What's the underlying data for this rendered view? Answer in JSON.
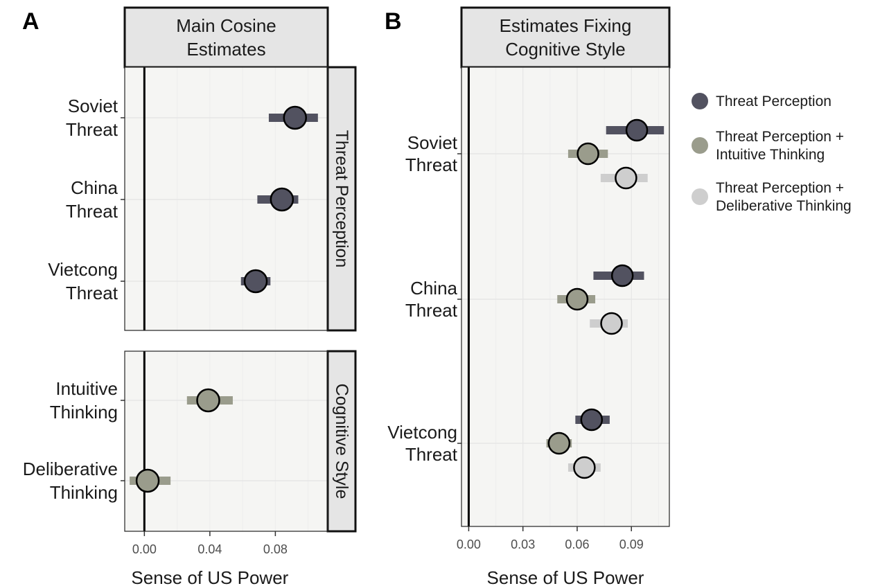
{
  "figure": {
    "panel_letters": [
      "A",
      "B"
    ]
  },
  "chart_data": [
    {
      "type": "scatter",
      "panel_letter": "A",
      "title": "Main Cosine\nEstimates",
      "xlabel": "Sense of US Power",
      "xlim": [
        -0.012,
        0.112
      ],
      "xticks": [
        0,
        0.04,
        0.08
      ],
      "xtick_labels": [
        "0.00",
        "0.04",
        "0.08"
      ],
      "zero_line": 0,
      "facets": [
        {
          "strip_label": "Threat Perception",
          "rows": [
            {
              "label": "Soviet\nThreat",
              "estimate": 0.092,
              "lo": 0.076,
              "hi": 0.106,
              "color": "#525260"
            },
            {
              "label": "China\nThreat",
              "estimate": 0.084,
              "lo": 0.069,
              "hi": 0.094,
              "color": "#525260"
            },
            {
              "label": "Vietcong\nThreat",
              "estimate": 0.068,
              "lo": 0.059,
              "hi": 0.077,
              "color": "#525260"
            }
          ]
        },
        {
          "strip_label": "Cognitive Style",
          "rows": [
            {
              "label": "Intuitive\nThinking",
              "estimate": 0.039,
              "lo": 0.026,
              "hi": 0.054,
              "color": "#9a9c8c"
            },
            {
              "label": "Deliberative\nThinking",
              "estimate": 0.002,
              "lo": -0.009,
              "hi": 0.016,
              "color": "#9a9c8c"
            }
          ]
        }
      ]
    },
    {
      "type": "scatter",
      "panel_letter": "B",
      "title": "Estimates Fixing\nCognitive Style",
      "xlabel": "Sense of US Power",
      "xlim": [
        -0.004,
        0.111
      ],
      "xticks": [
        0,
        0.03,
        0.06,
        0.09
      ],
      "xtick_labels": [
        "0.00",
        "0.03",
        "0.06",
        "0.09"
      ],
      "zero_line": 0,
      "legend_position": "right",
      "series": [
        {
          "name": "Threat Perception",
          "color": "#525260"
        },
        {
          "name": "Threat Perception +\nIntuitive Thinking",
          "color": "#9a9c8c"
        },
        {
          "name": "Threat Perception +\nDeliberative Thinking",
          "color": "#cecece"
        }
      ],
      "groups": [
        {
          "label": "Soviet\nThreat",
          "points": [
            {
              "series": 0,
              "estimate": 0.093,
              "lo": 0.076,
              "hi": 0.108
            },
            {
              "series": 1,
              "estimate": 0.066,
              "lo": 0.055,
              "hi": 0.077
            },
            {
              "series": 2,
              "estimate": 0.087,
              "lo": 0.073,
              "hi": 0.099
            }
          ]
        },
        {
          "label": "China\nThreat",
          "points": [
            {
              "series": 0,
              "estimate": 0.085,
              "lo": 0.069,
              "hi": 0.097
            },
            {
              "series": 1,
              "estimate": 0.06,
              "lo": 0.049,
              "hi": 0.07
            },
            {
              "series": 2,
              "estimate": 0.079,
              "lo": 0.067,
              "hi": 0.088
            }
          ]
        },
        {
          "label": "Vietcong\nThreat",
          "points": [
            {
              "series": 0,
              "estimate": 0.068,
              "lo": 0.059,
              "hi": 0.078
            },
            {
              "series": 1,
              "estimate": 0.05,
              "lo": 0.043,
              "hi": 0.057
            },
            {
              "series": 2,
              "estimate": 0.064,
              "lo": 0.055,
              "hi": 0.073
            }
          ]
        }
      ]
    }
  ]
}
